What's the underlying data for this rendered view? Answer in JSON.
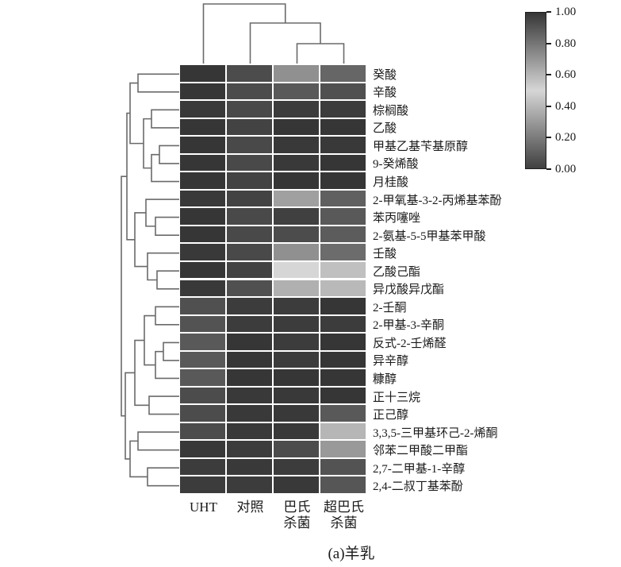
{
  "figure": {
    "caption": "(a)羊乳"
  },
  "chart_data": {
    "type": "heatmap",
    "title": "",
    "caption": "(a)羊乳",
    "legend_position": "right-colorbar",
    "grid": "white-gaps-between-cells",
    "columns": [
      "UHT",
      "对照",
      "巴氏杀菌",
      "超巴氏杀菌"
    ],
    "column_display_lines": [
      [
        "UHT"
      ],
      [
        "对照"
      ],
      [
        "巴氏",
        "杀菌"
      ],
      [
        "超巴氏",
        "杀菌"
      ]
    ],
    "rows": [
      "癸酸",
      "辛酸",
      "棕榈酸",
      "乙酸",
      "甲基乙基苄基原醇",
      "9-癸烯酸",
      "月桂酸",
      "2-甲氧基-3-2-丙烯基苯酚",
      "苯丙噻唑",
      "2-氨基-5-5甲基苯甲酸",
      "壬酸",
      "乙酸己酯",
      "异戊酸异戊酯",
      "2-壬酮",
      "2-甲基-3-辛酮",
      "反式-2-壬烯醛",
      "异辛醇",
      "糠醇",
      "正十三烷",
      "正己醇",
      "3,3,5-三甲基环己-2-烯酮",
      "邻苯二甲酸二甲酯",
      "2,7-二甲基-1-辛醇",
      "2,4-二叔丁基苯酚"
    ],
    "values": [
      [
        1.0,
        0.93,
        0.72,
        0.85
      ],
      [
        1.0,
        0.93,
        0.89,
        0.92
      ],
      [
        0.99,
        0.94,
        0.98,
        0.98
      ],
      [
        1.0,
        0.96,
        1.0,
        1.0
      ],
      [
        1.0,
        0.94,
        0.99,
        0.99
      ],
      [
        1.0,
        0.94,
        0.99,
        1.0
      ],
      [
        1.0,
        0.96,
        1.0,
        1.0
      ],
      [
        0.99,
        0.96,
        0.67,
        0.87
      ],
      [
        1.0,
        0.94,
        0.97,
        0.89
      ],
      [
        1.0,
        0.94,
        0.93,
        0.88
      ],
      [
        0.99,
        0.94,
        0.72,
        0.83
      ],
      [
        1.0,
        0.96,
        0.5,
        0.57
      ],
      [
        0.99,
        0.92,
        0.62,
        0.59
      ],
      [
        0.92,
        0.98,
        0.98,
        1.0
      ],
      [
        0.91,
        0.98,
        0.98,
        0.98
      ],
      [
        0.89,
        1.0,
        0.98,
        1.0
      ],
      [
        0.89,
        1.0,
        0.98,
        1.0
      ],
      [
        0.89,
        1.0,
        1.0,
        1.0
      ],
      [
        0.93,
        0.99,
        0.99,
        1.0
      ],
      [
        0.93,
        0.99,
        0.99,
        0.89
      ],
      [
        0.93,
        0.99,
        0.99,
        0.6
      ],
      [
        0.99,
        0.98,
        0.93,
        0.69
      ],
      [
        0.98,
        0.99,
        0.98,
        0.91
      ],
      [
        0.98,
        0.98,
        0.99,
        0.9
      ]
    ],
    "colorbar": {
      "min": 0.0,
      "max": 1.0,
      "ticks": [
        "1.00",
        "0.80",
        "0.60",
        "0.40",
        "0.20",
        "0.00"
      ],
      "style": "diverging grayscale: dark at 1.00, lightest near 0.50, dark at 0.00",
      "color_dark_top": "#363636",
      "color_light_mid": "#d6d6d6",
      "color_dark_bottom": "#404040"
    },
    "dendrograms": {
      "columns": {
        "merges": [
          [
            2,
            3,
            25
          ],
          [
            4,
            1,
            51
          ],
          [
            5,
            0,
            75
          ]
        ]
      },
      "rows": {
        "merges": [
          [
            0,
            1,
            52
          ],
          [
            2,
            3,
            35
          ],
          [
            4,
            5,
            25
          ],
          [
            26,
            6,
            35
          ],
          [
            25,
            27,
            45
          ],
          [
            24,
            28,
            62
          ],
          [
            8,
            9,
            30
          ],
          [
            7,
            30,
            42
          ],
          [
            11,
            12,
            28
          ],
          [
            10,
            32,
            40
          ],
          [
            31,
            33,
            56
          ],
          [
            29,
            34,
            66
          ],
          [
            13,
            14,
            30
          ],
          [
            15,
            16,
            20
          ],
          [
            37,
            17,
            30
          ],
          [
            36,
            38,
            44
          ],
          [
            18,
            19,
            38
          ],
          [
            39,
            40,
            56
          ],
          [
            20,
            21,
            52
          ],
          [
            22,
            23,
            40
          ],
          [
            42,
            43,
            62
          ],
          [
            41,
            44,
            68
          ],
          [
            35,
            45,
            73
          ]
        ]
      },
      "line_color": "#6a6a6a"
    }
  }
}
